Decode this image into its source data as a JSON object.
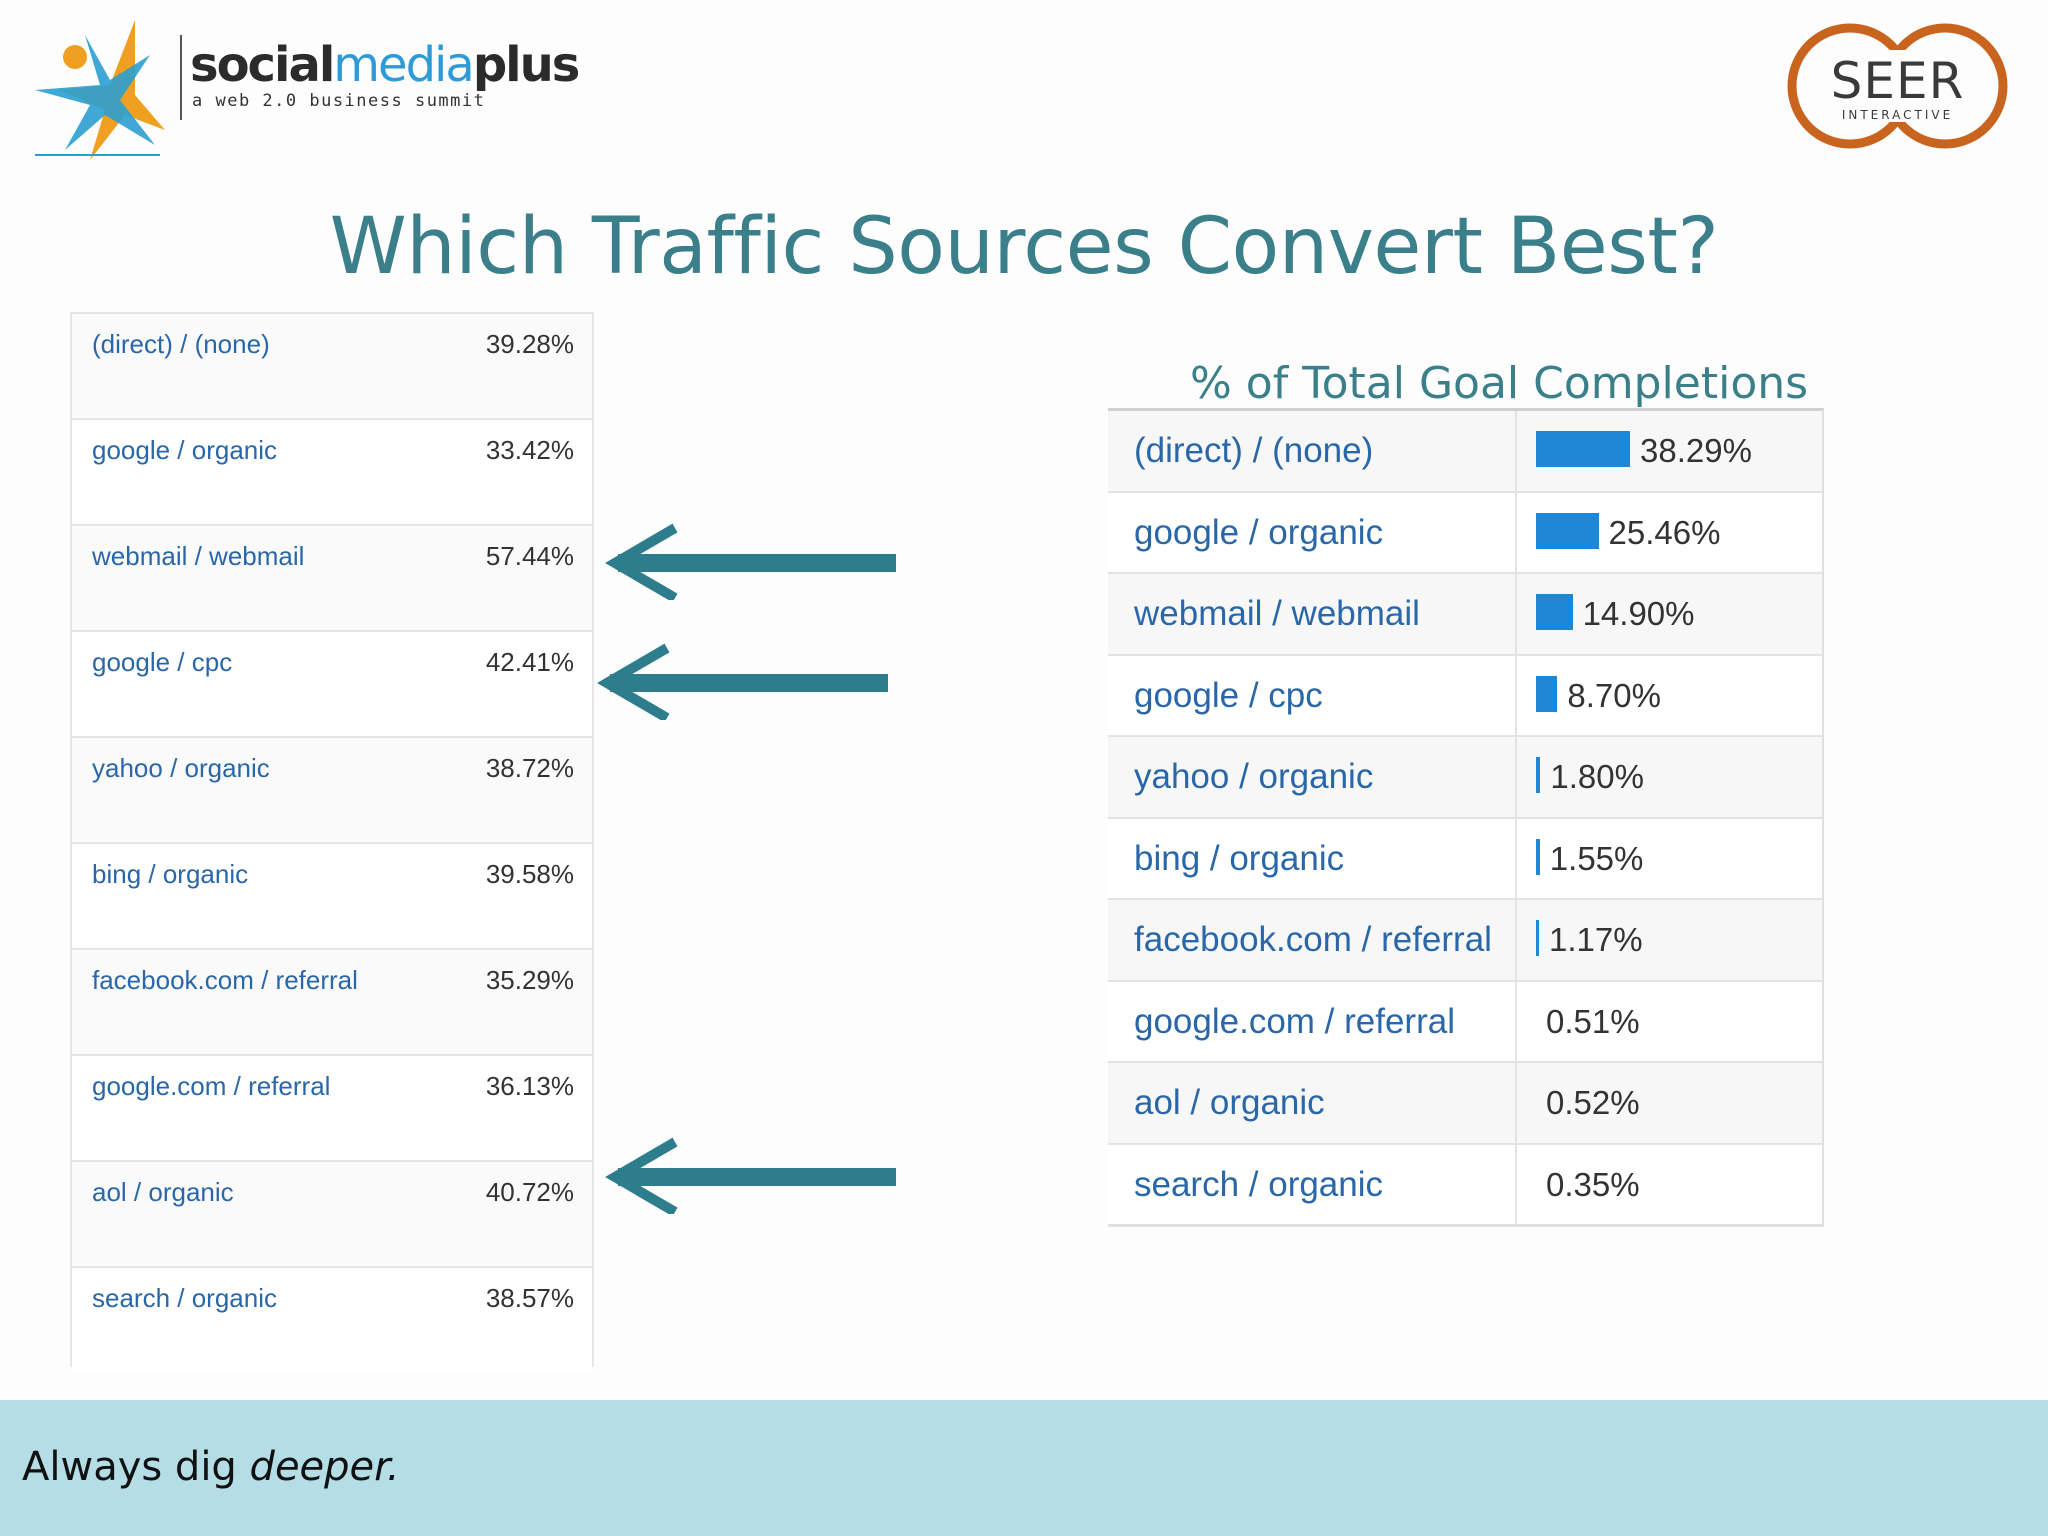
{
  "header": {
    "left_logo": {
      "brand_bold_1": "social",
      "brand_light": "media",
      "brand_bold_2": "plus",
      "tagline": "a web 2.0 business summit"
    },
    "right_logo": {
      "name": "SEER",
      "sub": "INTERACTIVE"
    }
  },
  "title": "Which Traffic Sources Convert Best?",
  "left_table": {
    "rows": [
      {
        "source": "(direct) / (none)",
        "rate": "39.28%"
      },
      {
        "source": "google / organic",
        "rate": "33.42%"
      },
      {
        "source": "webmail / webmail",
        "rate": "57.44%"
      },
      {
        "source": "google / cpc",
        "rate": "42.41%"
      },
      {
        "source": "yahoo / organic",
        "rate": "38.72%"
      },
      {
        "source": "bing / organic",
        "rate": "39.58%"
      },
      {
        "source": "facebook.com / referral",
        "rate": "35.29%"
      },
      {
        "source": "google.com / referral",
        "rate": "36.13%"
      },
      {
        "source": "aol / organic",
        "rate": "40.72%"
      },
      {
        "source": "search / organic",
        "rate": "38.57%"
      }
    ]
  },
  "right_table": {
    "caption": "% of Total Goal Completions",
    "rows": [
      {
        "source": "(direct) / (none)",
        "share": "38.29%",
        "value": 38.29
      },
      {
        "source": "google / organic",
        "share": "25.46%",
        "value": 25.46
      },
      {
        "source": "webmail / webmail",
        "share": "14.90%",
        "value": 14.9
      },
      {
        "source": "google / cpc",
        "share": "8.70%",
        "value": 8.7
      },
      {
        "source": "yahoo / organic",
        "share": "1.80%",
        "value": 1.8
      },
      {
        "source": "bing / organic",
        "share": "1.55%",
        "value": 1.55
      },
      {
        "source": "facebook.com / referral",
        "share": "1.17%",
        "value": 1.17
      },
      {
        "source": "google.com / referral",
        "share": "0.51%",
        "value": 0.51
      },
      {
        "source": "aol / organic",
        "share": "0.52%",
        "value": 0.52
      },
      {
        "source": "search / organic",
        "share": "0.35%",
        "value": 0.35
      }
    ]
  },
  "highlighted_rows": [
    "webmail / webmail",
    "google / cpc",
    "aol / organic"
  ],
  "footer": {
    "text_plain": "Always dig ",
    "text_italic": "deeper."
  },
  "colors": {
    "accent": "#3a7f8a",
    "bar": "#1e88d6",
    "link": "#2a67a8",
    "footer_bg": "#b5dde6"
  }
}
